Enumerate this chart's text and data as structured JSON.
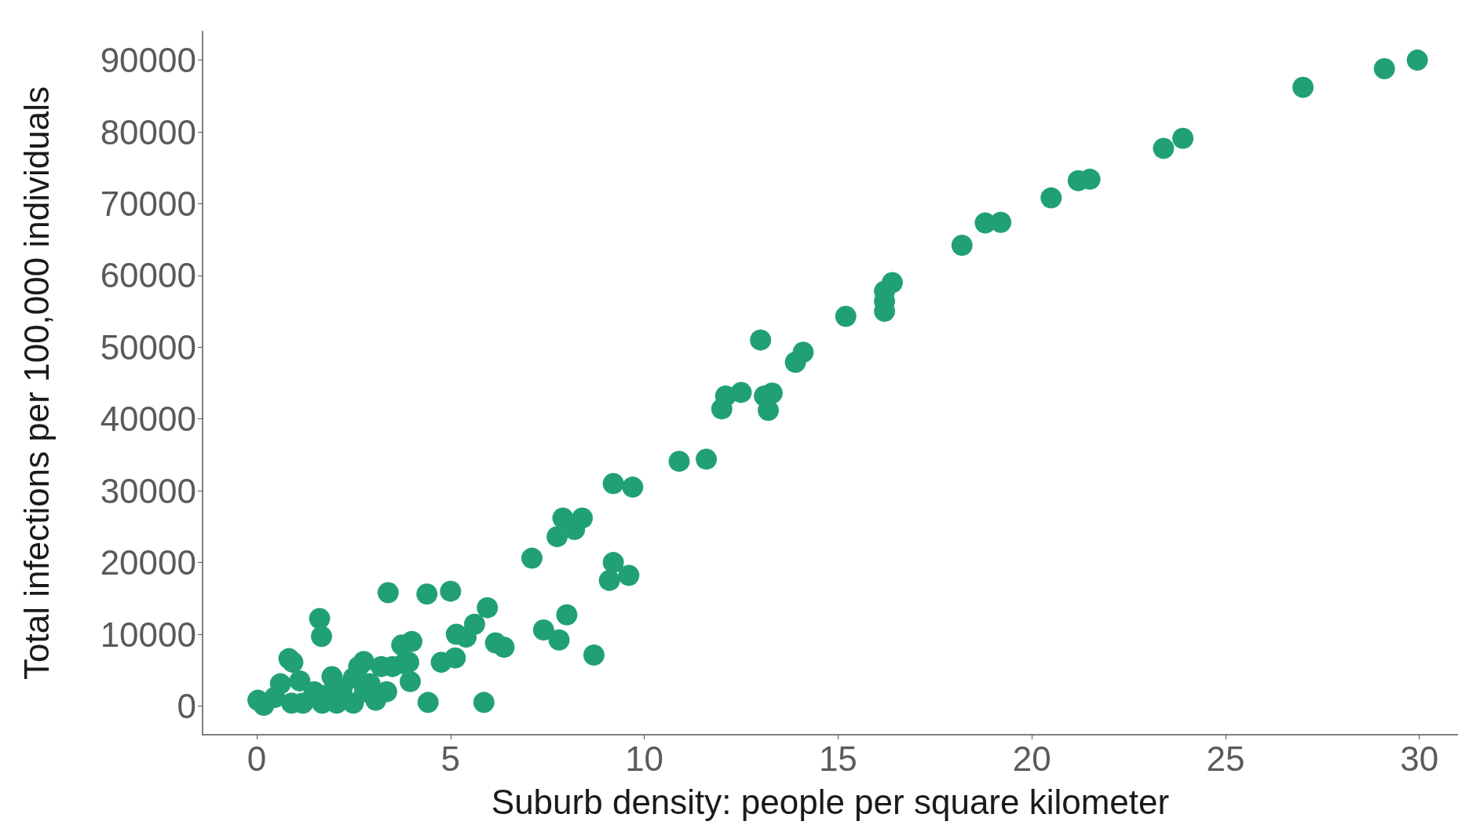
{
  "chart_data": {
    "type": "scatter",
    "xlabel": "Suburb density: people per square kilometer",
    "ylabel": "Total infections per 100,000 individuals",
    "xlim": [
      -1.4,
      31
    ],
    "xticks": [
      0,
      5,
      10,
      15,
      20,
      25,
      30
    ],
    "ylim": [
      -4000,
      94000
    ],
    "yticks": [
      0,
      10000,
      20000,
      30000,
      40000,
      50000,
      60000,
      70000,
      80000,
      90000
    ],
    "grid": false,
    "marker": "circle",
    "series": [
      {
        "color": "#21a078",
        "x": [
          29.95,
          29.1,
          27.0,
          23.9,
          23.4,
          21.5,
          21.2,
          20.5,
          19.2,
          18.8,
          18.2,
          16.4,
          16.2,
          16.2,
          16.2,
          15.2,
          14.1,
          13.9,
          13.0,
          12.1,
          12.0,
          12.5,
          13.3,
          13.1,
          13.2,
          11.6,
          10.9,
          9.7,
          9.2,
          7.9,
          8.4,
          8.2,
          7.75,
          7.1,
          9.2,
          9.6,
          9.1,
          8.0,
          7.4,
          7.8,
          8.7,
          3.39,
          4.39,
          5.0,
          5.95,
          5.62,
          5.15,
          5.4,
          4.76,
          5.12,
          6.16,
          6.38,
          4.42,
          5.86,
          1.62,
          1.67,
          0.83,
          0.93,
          4.0,
          3.74,
          3.92,
          3.96,
          2.76,
          1.94,
          1.11,
          0.61,
          0.03,
          0.18,
          0.46,
          0.9,
          1.19,
          1.69,
          2.06,
          2.49,
          3.07,
          3.35,
          2.92,
          2.49,
          2.78,
          2.2,
          1.48,
          1.84,
          3.5,
          3.79,
          3.21,
          2.63
        ],
        "values": [
          90000,
          88800,
          86200,
          79100,
          77700,
          73400,
          73200,
          70800,
          67400,
          67300,
          64200,
          59000,
          57800,
          56400,
          55000,
          54300,
          49300,
          47900,
          51000,
          43200,
          41400,
          43700,
          43600,
          43200,
          41200,
          34400,
          34100,
          30500,
          31000,
          26200,
          26200,
          24600,
          23600,
          20600,
          20000,
          18200,
          17500,
          12700,
          10600,
          9200,
          7100,
          15800,
          15600,
          16000,
          13700,
          11400,
          10000,
          9600,
          6100,
          6700,
          8800,
          8200,
          500,
          500,
          12200,
          9700,
          6600,
          6100,
          9000,
          8500,
          6100,
          3400,
          6200,
          4100,
          3500,
          3100,
          800,
          100,
          1200,
          400,
          400,
          400,
          400,
          400,
          800,
          2000,
          3100,
          3900,
          2000,
          2400,
          2000,
          1600,
          5500,
          5900,
          5500,
          5500
        ]
      }
    ]
  }
}
